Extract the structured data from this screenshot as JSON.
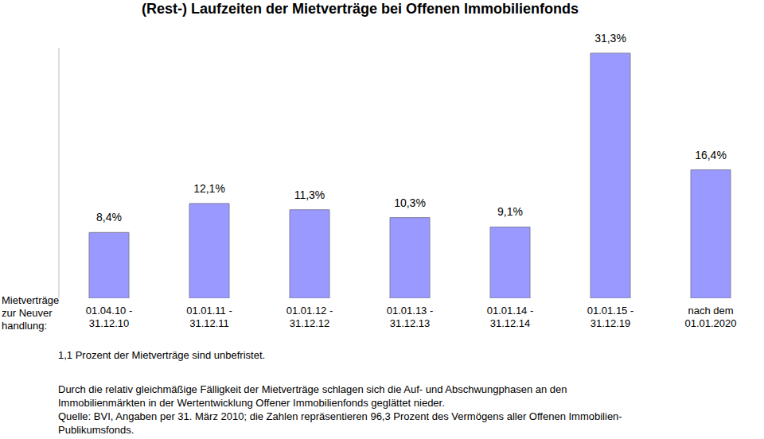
{
  "chart_data": {
    "type": "bar",
    "title": "(Rest-) Laufzeiten der Mietverträge bei Offenen Immobilienfonds",
    "x_label": "Mietverträge\nzur Neuver\nhandlung:",
    "categories": [
      "01.04.10 -\n31.12.10",
      "01.01.11 -\n31.12.11",
      "01.01.12 -\n31.12.12",
      "01.01.13 -\n31.12.13",
      "01.01.14 -\n31.12.14",
      "01.01.15 -\n31.12.19",
      "nach dem\n01.01.2020"
    ],
    "values": [
      8.4,
      12.1,
      11.3,
      10.3,
      9.1,
      31.3,
      16.4
    ],
    "value_labels": [
      "8,4%",
      "12,1%",
      "11,3%",
      "10,3%",
      "9,1%",
      "31,3%",
      "16,4%"
    ],
    "color": "#9999ff",
    "ylim": [
      0,
      32
    ],
    "data_labels": true,
    "tick_labels": "x",
    "annotations": [
      "1,1 Prozent der Mietverträge sind unbefristet.",
      "Durch die relativ gleichmäßige Fälligkeit der Mietverträge schlagen sich die Auf- und Abschwungphasen an den\nImmobilienmärkten in der Wertentwicklung Offener Immobilienfonds geglättet nieder.",
      "Quelle: BVI, Angaben per 31. März 2010; die Zahlen repräsentieren 96,3 Prozent des Vermögens aller Offenen Immobilien-\nPublikumsfonds."
    ]
  }
}
